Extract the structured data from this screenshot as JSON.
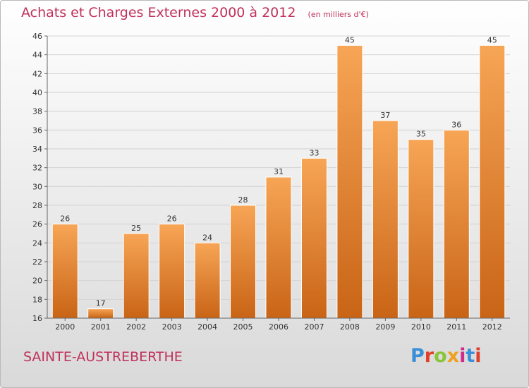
{
  "header": {
    "title": "Achats et Charges Externes 2000 à 2012",
    "subtitle": "(en milliers d'€)"
  },
  "footer": {
    "town": "SAINTE-AUSTREBERTHE",
    "logo_letters": [
      "P",
      "r",
      "o",
      "x",
      "i",
      "t",
      "i"
    ],
    "logo_colors": [
      "#3a8fd8",
      "#e0402a",
      "#8ac43a",
      "#f0a020",
      "#d02a8a",
      "#3a8fd8",
      "#e0402a"
    ]
  },
  "chart_data": {
    "type": "bar",
    "categories": [
      "2000",
      "2001",
      "2002",
      "2003",
      "2004",
      "2005",
      "2006",
      "2007",
      "2008",
      "2009",
      "2010",
      "2011",
      "2012"
    ],
    "values": [
      26,
      17,
      25,
      26,
      24,
      28,
      31,
      33,
      45,
      37,
      35,
      36,
      45
    ],
    "title": "Achats et Charges Externes 2000 à 2012",
    "subtitle": "(en milliers d'€)",
    "ylim": [
      16,
      46
    ],
    "yticks": [
      16,
      18,
      20,
      22,
      24,
      26,
      28,
      30,
      32,
      34,
      36,
      38,
      40,
      42,
      44,
      46
    ],
    "grid": true,
    "bar_color_top": "#f7a556",
    "bar_color_bottom": "#c96416"
  }
}
